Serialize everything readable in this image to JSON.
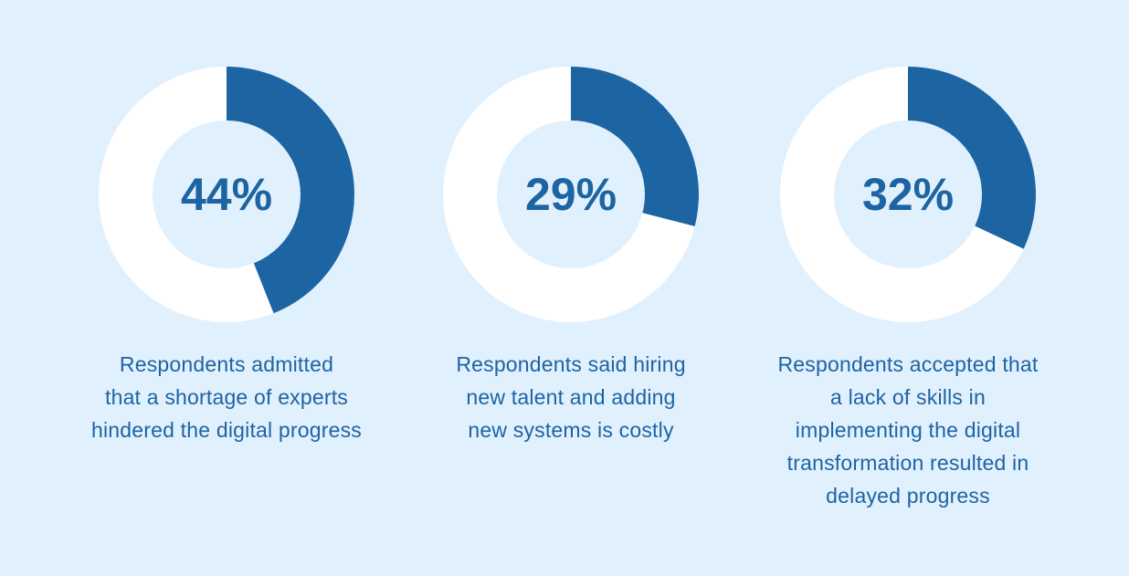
{
  "chart_data": [
    {
      "type": "pie",
      "variant": "donut",
      "value": 44,
      "label": "44%",
      "caption_lines": [
        "Respondents admitted",
        "that a shortage of experts",
        "hindered the digital progress"
      ]
    },
    {
      "type": "pie",
      "variant": "donut",
      "value": 29,
      "label": "29%",
      "caption_lines": [
        "Respondents said hiring",
        "new talent and adding",
        "new systems is costly"
      ]
    },
    {
      "type": "pie",
      "variant": "donut",
      "value": 32,
      "label": "32%",
      "caption_lines": [
        "Respondents accepted that",
        "a lack of skills in",
        "implementing the digital",
        "transformation resulted in",
        "delayed progress"
      ]
    }
  ],
  "colors": {
    "background": "#e1f0fd",
    "filled": "#1d64a3",
    "remaining": "#ffffff",
    "text": "#1d64a3"
  }
}
